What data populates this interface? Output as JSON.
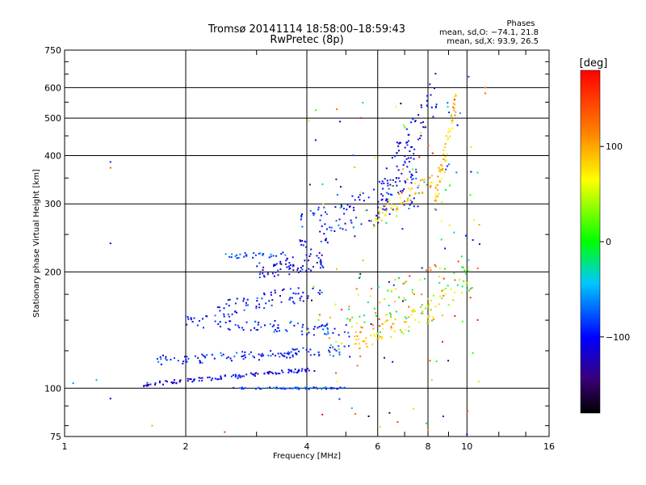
{
  "chart_data": {
    "type": "scatter",
    "title": "Tromsø 20141114  18:58:00–18:59:43",
    "subtitle": "RwPretec (8p)",
    "stats": {
      "heading": "Phases",
      "line_o": "mean, sd,O: −74.1, 21.8",
      "line_x": "mean, sd,X:  93.9, 26.5"
    },
    "xlabel": "Frequency [MHz]",
    "ylabel": "Stationary phase Virtual Height [km]",
    "x_scale": "log",
    "y_scale": "log",
    "xlim": [
      1,
      16
    ],
    "ylim": [
      75,
      750
    ],
    "x_ticks": [
      1,
      2,
      4,
      6,
      8,
      10,
      16
    ],
    "x_tick_labels": [
      "1",
      "2",
      "4",
      "6",
      "8",
      "10",
      "16"
    ],
    "y_ticks": [
      75,
      100,
      200,
      300,
      400,
      500,
      600,
      750
    ],
    "y_tick_labels": [
      "75",
      "100",
      "200",
      "300",
      "400",
      "500",
      "600",
      "750"
    ],
    "grid": true,
    "colorbar": {
      "label": "[deg]",
      "range": [
        -180,
        180
      ],
      "ticks": [
        100,
        0,
        -100
      ],
      "tick_labels": [
        "100",
        "0",
        "−100"
      ]
    },
    "traces": [
      {
        "kind": "o-F",
        "phase": -110,
        "f_start": 1.55,
        "f_end": 4.2,
        "h_start": 102,
        "h_end": 112,
        "spread": 0.012,
        "n": 110
      },
      {
        "kind": "o-F",
        "phase": -95,
        "f_start": 1.7,
        "f_end": 5.0,
        "h_start": 118,
        "h_end": 125,
        "spread": 0.03,
        "n": 110
      },
      {
        "kind": "o-F",
        "phase": -90,
        "f_start": 2.0,
        "f_end": 5.2,
        "h_start": 150,
        "h_end": 140,
        "spread": 0.04,
        "n": 90
      },
      {
        "kind": "o-F",
        "phase": -100,
        "f_start": 2.4,
        "f_end": 4.4,
        "h_start": 160,
        "h_end": 180,
        "spread": 0.05,
        "n": 70
      },
      {
        "kind": "o-F",
        "phase": -105,
        "f_start": 3.0,
        "f_end": 4.4,
        "h_start": 200,
        "h_end": 215,
        "spread": 0.05,
        "n": 70
      },
      {
        "kind": "o-F",
        "phase": -85,
        "f_start": 2.5,
        "f_end": 3.6,
        "h_start": 220,
        "h_end": 222,
        "spread": 0.015,
        "n": 30
      },
      {
        "kind": "o-F2",
        "phase": -95,
        "f_start": 3.8,
        "f_end": 7.6,
        "h_start": 250,
        "h_end": 330,
        "spread": 0.12,
        "n": 120
      },
      {
        "kind": "o-F2",
        "phase": -110,
        "f_start": 6.0,
        "f_end": 8.5,
        "h_start": 300,
        "h_end": 600,
        "spread": 0.12,
        "n": 90
      },
      {
        "kind": "o-E",
        "phase": -80,
        "f_start": 2.6,
        "f_end": 5.0,
        "h_start": 100,
        "h_end": 100,
        "spread": 0.006,
        "n": 55
      },
      {
        "kind": "x-F",
        "phase": 90,
        "f_start": 5.8,
        "f_end": 9.2,
        "h_start": 270,
        "h_end": 380,
        "spread": 0.05,
        "n": 60
      },
      {
        "kind": "x-F",
        "phase": 95,
        "f_start": 8.3,
        "f_end": 9.4,
        "h_start": 300,
        "h_end": 560,
        "spread": 0.07,
        "n": 60
      },
      {
        "kind": "x-F",
        "phase": 85,
        "f_start": 5.2,
        "f_end": 9.0,
        "h_start": 130,
        "h_end": 165,
        "spread": 0.07,
        "n": 70
      },
      {
        "kind": "mixed",
        "phase": 60,
        "f_start": 4.5,
        "f_end": 10.5,
        "h_start": 140,
        "h_end": 200,
        "spread": 0.15,
        "n": 110
      },
      {
        "kind": "noise",
        "phase": 120,
        "f_start": 4.0,
        "f_end": 10.8,
        "h_start": 78,
        "h_end": 560,
        "spread": 0.0,
        "n": 140
      }
    ],
    "isolated_points": [
      {
        "x": 1.05,
        "y": 103,
        "phase": -60
      },
      {
        "x": 1.2,
        "y": 105,
        "phase": -50
      },
      {
        "x": 1.3,
        "y": 94,
        "phase": -120
      },
      {
        "x": 1.3,
        "y": 237,
        "phase": -110
      },
      {
        "x": 1.3,
        "y": 385,
        "phase": -90
      },
      {
        "x": 1.3,
        "y": 372,
        "phase": 140
      },
      {
        "x": 1.65,
        "y": 80,
        "phase": 100
      },
      {
        "x": 2.5,
        "y": 77,
        "phase": 150
      },
      {
        "x": 10.1,
        "y": 640,
        "phase": -80
      },
      {
        "x": 11.1,
        "y": 600,
        "phase": 110
      },
      {
        "x": 11.1,
        "y": 580,
        "phase": 130
      },
      {
        "x": 8.0,
        "y": 78,
        "phase": 110
      },
      {
        "x": 10.0,
        "y": 76,
        "phase": -100
      }
    ]
  }
}
